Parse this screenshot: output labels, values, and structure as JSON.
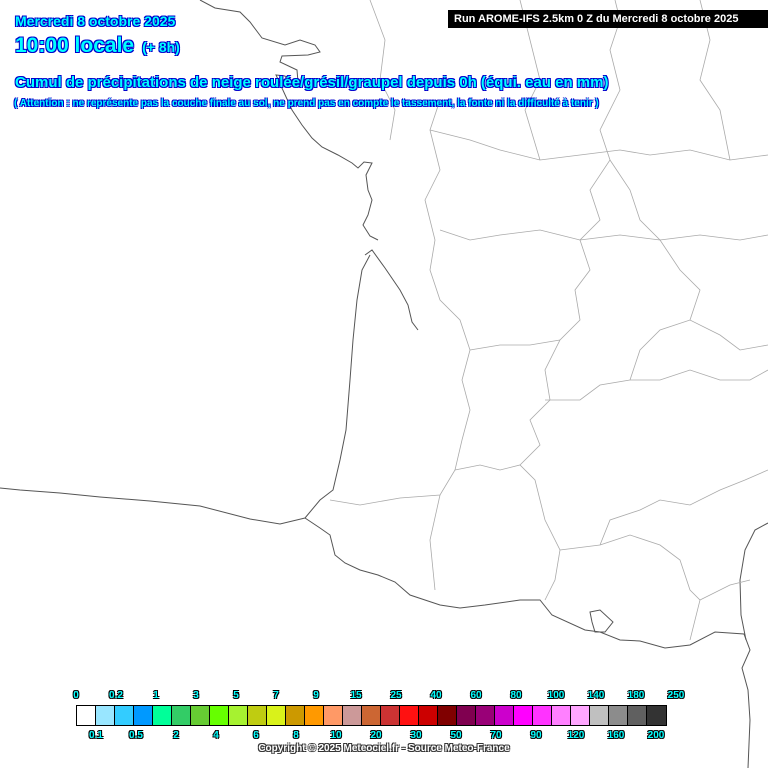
{
  "header": {
    "date": "Mercredi 8 octobre 2025",
    "time": "10:00 locale",
    "lead": "(+ 8h)",
    "title": "Cumul de précipitations de neige roulée/grésil/graupel depuis 0h (équi. eau en mm)",
    "warning": "( Attention : ne représente pas la couche finale au sol, ne prend pas en compte le tassement, la fonte ni la difficulté à tenir )",
    "run": "Run AROME-IFS 2.5km 0 Z du Mercredi 8 octobre 2025"
  },
  "legend": {
    "colors": [
      "#ffffff",
      "#99e6ff",
      "#33ccff",
      "#0099ff",
      "#00ff99",
      "#33cc66",
      "#66cc33",
      "#66ff00",
      "#a6f230",
      "#bfcc11",
      "#d9f21a",
      "#cc9900",
      "#ff9900",
      "#ff9966",
      "#cc9999",
      "#cc6633",
      "#cc3333",
      "#ff1111",
      "#cc0000",
      "#800000",
      "#800050",
      "#990077",
      "#cc00cc",
      "#ff00ff",
      "#ff33ff",
      "#ff80ff",
      "#ffa6ff",
      "#c0c0c0",
      "#8c8c8c",
      "#606060",
      "#333333"
    ],
    "top_labels": [
      "0",
      "0.2",
      "1",
      "3",
      "5",
      "7",
      "9",
      "15",
      "25",
      "40",
      "60",
      "80",
      "100",
      "140",
      "180",
      "250"
    ],
    "bottom_labels": [
      "0.1",
      "0.5",
      "2",
      "4",
      "6",
      "8",
      "10",
      "20",
      "30",
      "50",
      "70",
      "90",
      "120",
      "160",
      "200"
    ]
  },
  "copyright": "Copyright © 2025 Meteociel.fr - Source Meteo-France"
}
